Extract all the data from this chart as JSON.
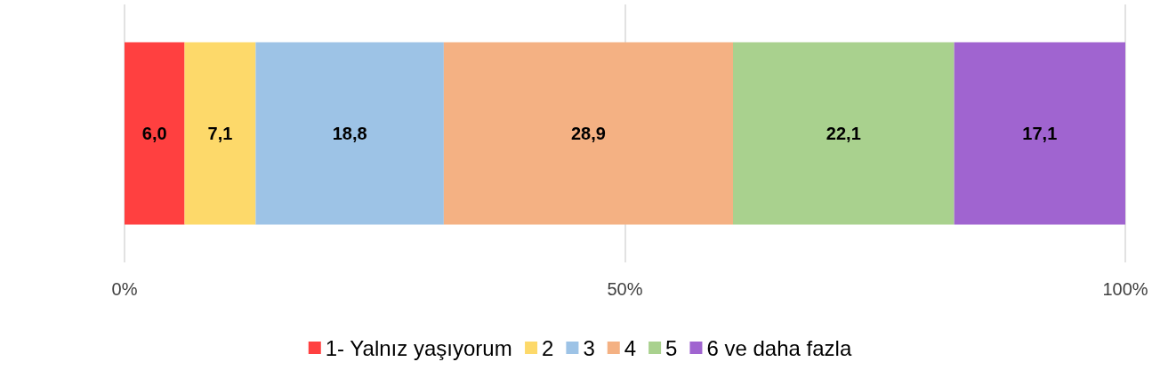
{
  "chart_data": {
    "type": "bar",
    "orientation": "horizontal",
    "stacked": true,
    "categories": [
      null
    ],
    "series": [
      {
        "name": "1- Yalnız yaşıyorum",
        "color": "#ff4040",
        "values": [
          6.0
        ],
        "value_labels": [
          "6,0"
        ]
      },
      {
        "name": "2",
        "color": "#fdd96a",
        "values": [
          7.1
        ],
        "value_labels": [
          "7,1"
        ]
      },
      {
        "name": "3",
        "color": "#9dc3e6",
        "values": [
          18.8
        ],
        "value_labels": [
          "18,8"
        ]
      },
      {
        "name": "4",
        "color": "#f4b183",
        "values": [
          28.9
        ],
        "value_labels": [
          "28,9"
        ]
      },
      {
        "name": "5",
        "color": "#a9d18e",
        "values": [
          22.1
        ],
        "value_labels": [
          "22,1"
        ]
      },
      {
        "name": "6 ve daha fazla",
        "color": "#a064d0",
        "values": [
          17.1
        ],
        "value_labels": [
          "17,1"
        ]
      }
    ],
    "xlim": [
      0,
      100
    ],
    "xticks": [
      {
        "value": 0,
        "label": "0%"
      },
      {
        "value": 50,
        "label": "50%"
      },
      {
        "value": 100,
        "label": "100%"
      }
    ],
    "grid": "x",
    "legend": "bottom"
  }
}
